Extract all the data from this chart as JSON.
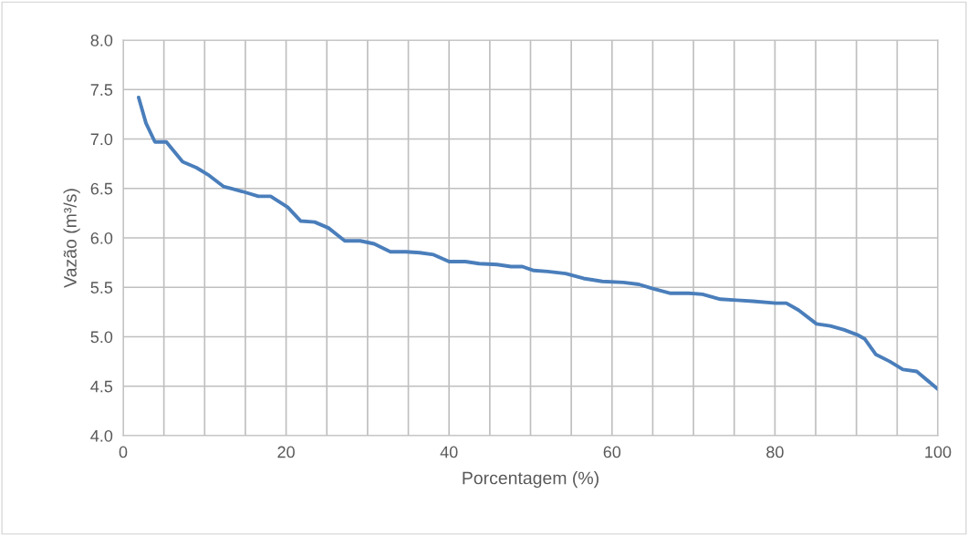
{
  "chart_data": {
    "type": "line",
    "xlabel": "Porcentagem (%)",
    "ylabel": "Vazão (m³/s)",
    "x": [
      1.9,
      2.8,
      3.9,
      5.3,
      7.3,
      9.0,
      10.4,
      12.3,
      14.6,
      16.6,
      18.1,
      20.2,
      21.8,
      23.5,
      25.2,
      27.2,
      29.1,
      30.8,
      32.8,
      34.7,
      36.4,
      38.1,
      40.0,
      42.0,
      43.7,
      45.9,
      47.6,
      49.0,
      50.4,
      52.1,
      54.3,
      56.5,
      58.8,
      61.4,
      63.3,
      64.9,
      67.2,
      69.4,
      71.1,
      73.3,
      75.3,
      77.3,
      80.1,
      81.4,
      82.9,
      85.1,
      86.8,
      88.5,
      90.1,
      91.0,
      92.4,
      94.1,
      95.7,
      97.4,
      100
    ],
    "series": [
      {
        "color": "#4a7ebb",
        "values": [
          7.42,
          7.16,
          6.97,
          6.97,
          6.77,
          6.71,
          6.64,
          6.52,
          6.47,
          6.42,
          6.42,
          6.31,
          6.17,
          6.16,
          6.1,
          5.97,
          5.97,
          5.94,
          5.86,
          5.86,
          5.85,
          5.83,
          5.76,
          5.76,
          5.74,
          5.73,
          5.71,
          5.71,
          5.67,
          5.66,
          5.64,
          5.59,
          5.56,
          5.55,
          5.53,
          5.49,
          5.44,
          5.44,
          5.43,
          5.38,
          5.37,
          5.36,
          5.34,
          5.34,
          5.27,
          5.13,
          5.11,
          5.07,
          5.02,
          4.98,
          4.82,
          4.75,
          4.67,
          4.65,
          4.47
        ]
      }
    ],
    "xlim": [
      0,
      100
    ],
    "xticks": [
      0,
      {
        "value": 5,
        "label": null
      },
      {
        "value": 10,
        "label": null
      },
      {
        "value": 15,
        "label": null
      },
      20,
      {
        "value": 25,
        "label": null
      },
      {
        "value": 30,
        "label": null
      },
      {
        "value": 35,
        "label": null
      },
      40,
      {
        "value": 45,
        "label": null
      },
      {
        "value": 50,
        "label": null
      },
      {
        "value": 55,
        "label": null
      },
      60,
      {
        "value": 65,
        "label": null
      },
      {
        "value": 70,
        "label": null
      },
      {
        "value": 75,
        "label": null
      },
      80,
      {
        "value": 85,
        "label": null
      },
      {
        "value": 90,
        "label": null
      },
      {
        "value": 95,
        "label": null
      },
      100
    ],
    "ylim": [
      4.0,
      8.0
    ],
    "yticks": [
      {
        "value": 4.0,
        "label": "4.0"
      },
      {
        "value": 4.5,
        "label": "4.5"
      },
      {
        "value": 5.0,
        "label": "5.0"
      },
      {
        "value": 5.5,
        "label": "5.5"
      },
      {
        "value": 6.0,
        "label": "6.0"
      },
      {
        "value": 6.5,
        "label": "6.5"
      },
      {
        "value": 7.0,
        "label": "7.0"
      },
      {
        "value": 7.5,
        "label": "7.5"
      },
      {
        "value": 8.0,
        "label": "8.0"
      }
    ],
    "grid": true,
    "marker": "none",
    "line_style": "solid"
  }
}
